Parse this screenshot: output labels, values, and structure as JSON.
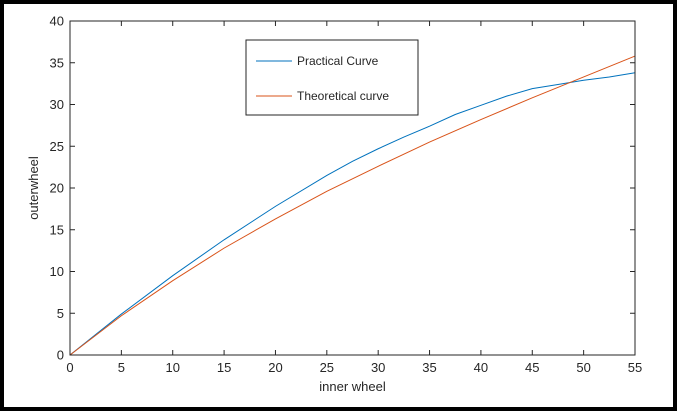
{
  "chart_data": {
    "type": "line",
    "title": "",
    "xlabel": "inner wheel",
    "ylabel": "outerwheel",
    "xlim": [
      0,
      55
    ],
    "ylim": [
      0,
      40
    ],
    "xticks": [
      0,
      5,
      10,
      15,
      20,
      25,
      30,
      35,
      40,
      45,
      50,
      55
    ],
    "yticks": [
      0,
      5,
      10,
      15,
      20,
      25,
      30,
      35,
      40
    ],
    "grid": false,
    "legend_position": "top-center",
    "series": [
      {
        "name": "Practical Curve",
        "color": "#0072BD",
        "x": [
          0,
          5,
          10,
          15,
          20,
          25,
          27.5,
          30,
          32.5,
          35,
          37.5,
          40,
          42.5,
          45,
          47.5,
          50,
          52.5,
          55
        ],
        "y": [
          0,
          4.9,
          9.5,
          13.8,
          17.8,
          21.5,
          23.2,
          24.7,
          26.1,
          27.4,
          28.8,
          29.9,
          31.0,
          31.9,
          32.4,
          32.9,
          33.3,
          33.8
        ]
      },
      {
        "name": "Theoretical curve",
        "color": "#D95319",
        "x": [
          0,
          5,
          10,
          15,
          20,
          25,
          30,
          35,
          40,
          45,
          50,
          55
        ],
        "y": [
          0,
          4.7,
          8.9,
          12.8,
          16.3,
          19.6,
          22.6,
          25.5,
          28.2,
          30.8,
          33.3,
          35.8
        ]
      }
    ]
  }
}
